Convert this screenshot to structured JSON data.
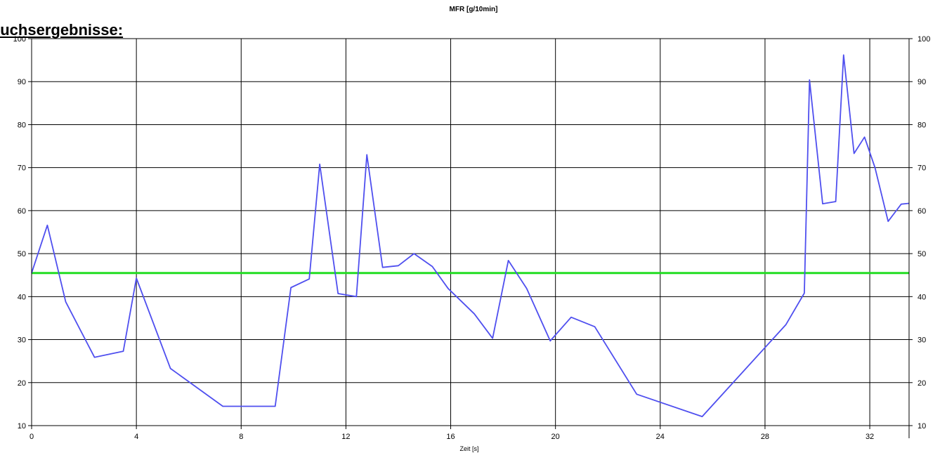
{
  "page": {
    "heading": "suchsergebnisse:"
  },
  "chart_data": {
    "type": "line",
    "title": "MFR [g/10min]",
    "xlabel": "Zeit [s]",
    "ylabel": "",
    "xlim": [
      0,
      33.5
    ],
    "ylim": [
      10,
      100
    ],
    "x_ticks": [
      0,
      4,
      8,
      12,
      16,
      20,
      24,
      28,
      32
    ],
    "y_ticks": [
      10,
      20,
      30,
      40,
      50,
      60,
      70,
      80,
      90,
      100
    ],
    "grid": true,
    "series": [
      {
        "color": "#4f4fef",
        "x": [
          0,
          0.6,
          1.3,
          2.4,
          3.5,
          4.0,
          5.3,
          7.3,
          9.3,
          9.9,
          10.6,
          11.0,
          11.7,
          12.4,
          12.8,
          13.4,
          14.0,
          14.6,
          15.3,
          15.9,
          16.9,
          17.6,
          18.2,
          18.9,
          19.8,
          20.6,
          21.5,
          23.1,
          25.6,
          28.8,
          29.5,
          29.7,
          30.2,
          30.7,
          31.0,
          31.4,
          31.8,
          32.2,
          32.7,
          33.2,
          33.5
        ],
        "y": [
          45.5,
          56.6,
          38.8,
          25.9,
          27.3,
          44.3,
          23.3,
          14.5,
          14.5,
          42.1,
          44.1,
          70.8,
          40.7,
          40.0,
          73.0,
          46.8,
          47.2,
          50.0,
          47.0,
          41.9,
          36.0,
          30.3,
          48.4,
          41.9,
          29.7,
          35.2,
          33.0,
          17.3,
          12.1,
          33.5,
          40.8,
          90.4,
          61.6,
          62.1,
          96.2,
          73.3,
          77.1,
          70.0,
          57.5,
          61.5,
          61.7
        ]
      },
      {
        "color": "#22dd22",
        "x": [
          0,
          33.5
        ],
        "y": [
          45.5,
          45.5
        ]
      }
    ]
  }
}
